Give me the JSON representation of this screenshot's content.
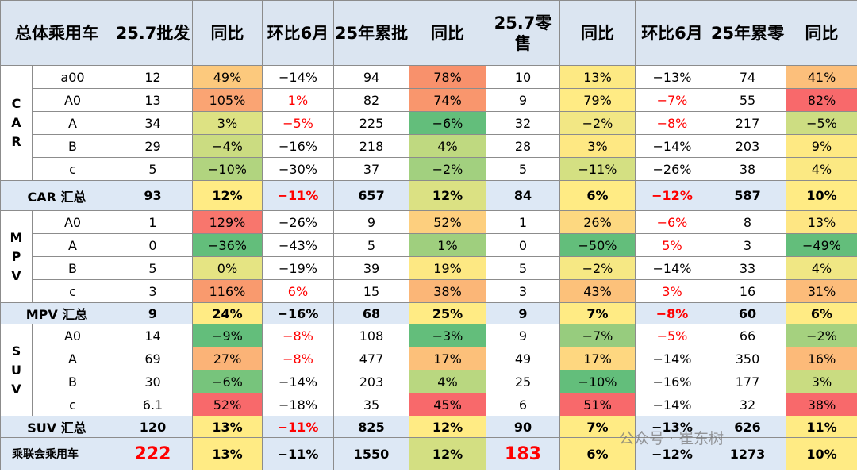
{
  "header": [
    "总体乘用车",
    "25.7批发",
    "同比",
    "环比6月",
    "25年累批",
    "同比",
    "25.7零售",
    "同比",
    "环比6月",
    "25年累零",
    "同比"
  ],
  "groups": [
    {
      "label": "CAR",
      "rows": [
        {
          "label": "a00",
          "cells": [
            "12",
            {
              "text": "49%",
              "bg": "#fcc97d"
            },
            "−14%",
            "94",
            {
              "text": "78%",
              "bg": "#f8916c"
            },
            "10",
            {
              "text": "13%",
              "bg": "#fde983"
            },
            "−13%",
            "74",
            {
              "text": "41%",
              "bg": "#fcbf7b"
            }
          ]
        },
        {
          "label": "A0",
          "cells": [
            "13",
            {
              "text": "105%",
              "bg": "#faa473"
            },
            {
              "text": "1%",
              "fg": "#ff0000"
            },
            "82",
            {
              "text": "74%",
              "bg": "#f9966d"
            },
            "9",
            {
              "text": "79%",
              "bg": "#ffeb84"
            },
            {
              "text": "−7%",
              "fg": "#ff0000"
            },
            "55",
            {
              "text": "82%",
              "bg": "#f8696b"
            }
          ]
        },
        {
          "label": "A",
          "cells": [
            "34",
            {
              "text": "3%",
              "bg": "#dde283"
            },
            {
              "text": "−5%",
              "fg": "#ff0000"
            },
            "225",
            {
              "text": "−6%",
              "bg": "#63be7b"
            },
            "32",
            {
              "text": "−2%",
              "bg": "#f2e784"
            },
            {
              "text": "−8%",
              "fg": "#ff0000"
            },
            "217",
            {
              "text": "−5%",
              "bg": "#cddd82"
            }
          ]
        },
        {
          "label": "B",
          "cells": [
            "29",
            {
              "text": "−4%",
              "bg": "#cbdc81"
            },
            "−16%",
            "218",
            {
              "text": "4%",
              "bg": "#bfd980"
            },
            "28",
            {
              "text": "3%",
              "bg": "#fee883"
            },
            "−14%",
            "203",
            {
              "text": "9%",
              "bg": "#fee983"
            }
          ]
        },
        {
          "label": "c",
          "cells": [
            "5",
            {
              "text": "−10%",
              "bg": "#b1d47f"
            },
            "−30%",
            "37",
            {
              "text": "−2%",
              "bg": "#a2d07f"
            },
            "5",
            {
              "text": "−11%",
              "bg": "#d4e082"
            },
            "−26%",
            "38",
            {
              "text": "4%",
              "bg": "#fbe983"
            }
          ]
        }
      ],
      "total": {
        "label": "CAR 汇总",
        "cells": [
          "93",
          {
            "text": "12%",
            "bg": "#ffeb84"
          },
          {
            "text": "−11%",
            "fg": "#ff0000"
          },
          "657",
          {
            "text": "12%",
            "bg": "#dbe183"
          },
          "84",
          {
            "text": "6%",
            "bg": "#ffeb84"
          },
          {
            "text": "−12%",
            "fg": "#ff0000"
          },
          "587",
          {
            "text": "10%",
            "bg": "#ffeb84"
          }
        ]
      }
    },
    {
      "label": "MPV",
      "rows": [
        {
          "label": "A0",
          "cells": [
            "1",
            {
              "text": "129%",
              "bg": "#f8766d"
            },
            "−26%",
            "9",
            {
              "text": "52%",
              "bg": "#fdcf7e"
            },
            "1",
            {
              "text": "26%",
              "bg": "#fdd880"
            },
            {
              "text": "−6%",
              "fg": "#ff0000"
            },
            "8",
            {
              "text": "13%",
              "bg": "#fee683"
            }
          ]
        },
        {
          "label": "A",
          "cells": [
            "0",
            {
              "text": "−36%",
              "bg": "#63be7b"
            },
            "−43%",
            "5",
            {
              "text": "1%",
              "bg": "#9fcf7e"
            },
            "0",
            {
              "text": "−50%",
              "bg": "#63be7b"
            },
            {
              "text": "5%",
              "fg": "#ff0000"
            },
            "3",
            {
              "text": "−49%",
              "bg": "#63be7b"
            }
          ]
        },
        {
          "label": "B",
          "cells": [
            "5",
            {
              "text": "0%",
              "bg": "#e5e483"
            },
            "−19%",
            "39",
            {
              "text": "19%",
              "bg": "#fde883"
            },
            "5",
            {
              "text": "−2%",
              "bg": "#f6e884"
            },
            "−14%",
            "33",
            {
              "text": "4%",
              "bg": "#f0e784"
            }
          ]
        },
        {
          "label": "c",
          "cells": [
            "3",
            {
              "text": "116%",
              "bg": "#f99a6e"
            },
            {
              "text": "6%",
              "fg": "#ff0000"
            },
            "15",
            {
              "text": "38%",
              "bg": "#fbb677"
            },
            "3",
            {
              "text": "43%",
              "bg": "#fcc17a"
            },
            {
              "text": "3%",
              "fg": "#ff0000"
            },
            "16",
            {
              "text": "31%",
              "bg": "#fcbc7a"
            }
          ]
        }
      ],
      "total": {
        "label": "MPV 汇总",
        "cells": [
          "9",
          {
            "text": "24%",
            "bg": "#ffeb84"
          },
          "−16%",
          "68",
          {
            "text": "25%",
            "bg": "#ffeb84"
          },
          "9",
          {
            "text": "7%",
            "bg": "#ffeb84"
          },
          {
            "text": "−8%",
            "fg": "#ff0000"
          },
          "60",
          {
            "text": "6%",
            "bg": "#ffeb84"
          }
        ]
      }
    },
    {
      "label": "SUV",
      "rows": [
        {
          "label": "A0",
          "cells": [
            "14",
            {
              "text": "−9%",
              "bg": "#63be7b"
            },
            {
              "text": "−8%",
              "fg": "#ff0000"
            },
            "108",
            {
              "text": "−3%",
              "bg": "#63be7b"
            },
            "9",
            {
              "text": "−7%",
              "bg": "#97cc7e"
            },
            {
              "text": "−5%",
              "fg": "#ff0000"
            },
            "66",
            {
              "text": "−2%",
              "bg": "#a5d17f"
            }
          ]
        },
        {
          "label": "A",
          "cells": [
            "69",
            {
              "text": "27%",
              "bg": "#fbb377"
            },
            {
              "text": "−8%",
              "fg": "#ff0000"
            },
            "477",
            {
              "text": "17%",
              "bg": "#fcc07a"
            },
            "49",
            {
              "text": "17%",
              "bg": "#fed780"
            },
            "−14%",
            "350",
            {
              "text": "16%",
              "bg": "#fcba79"
            }
          ]
        },
        {
          "label": "B",
          "cells": [
            "30",
            {
              "text": "−6%",
              "bg": "#77c47c"
            },
            "−14%",
            "203",
            {
              "text": "4%",
              "bg": "#b9d780"
            },
            "25",
            {
              "text": "−10%",
              "bg": "#63be7b"
            },
            "−16%",
            "177",
            {
              "text": "3%",
              "bg": "#c9dc81"
            }
          ]
        },
        {
          "label": "c",
          "cells": [
            "6.1",
            {
              "text": "52%",
              "bg": "#f8696b"
            },
            "−18%",
            "35",
            {
              "text": "45%",
              "bg": "#f8696b"
            },
            "6",
            {
              "text": "51%",
              "bg": "#f8696b"
            },
            "−14%",
            "32",
            {
              "text": "38%",
              "bg": "#f8696b"
            }
          ]
        }
      ],
      "total": {
        "label": "SUV 汇总",
        "cells": [
          "120",
          {
            "text": "13%",
            "bg": "#ffeb84"
          },
          {
            "text": "−11%",
            "fg": "#ff0000"
          },
          "825",
          {
            "text": "12%",
            "bg": "#ffeb84"
          },
          "90",
          {
            "text": "7%",
            "bg": "#ffeb84"
          },
          "−13%",
          "626",
          {
            "text": "11%",
            "bg": "#ffeb84"
          }
        ]
      }
    }
  ],
  "grand_total": {
    "label": "乘联会乘用车",
    "cells": [
      {
        "text": "222",
        "fg": "#ff0000"
      },
      {
        "text": "13%",
        "bg": "#ffeb84"
      },
      "−11%",
      "1550",
      {
        "text": "12%",
        "bg": "#d3df82"
      },
      {
        "text": "183",
        "fg": "#ff0000"
      },
      {
        "text": "6%",
        "bg": "#ffeb84"
      },
      "−12%",
      "1273",
      {
        "text": "10%",
        "bg": "#ffeb84"
      }
    ]
  },
  "watermark": "公众号 · 崔东树"
}
